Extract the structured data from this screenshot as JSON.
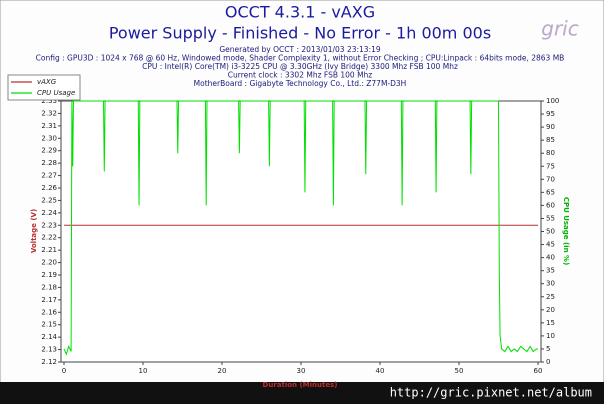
{
  "chart_data": {
    "type": "line",
    "title": "OCCT 4.3.1 - vAXG",
    "subtitle": "Power Supply - Finished - No Error - 1h 00m 00s",
    "info": [
      "Generated by OCCT : 2013/01/03 23:13:19",
      "Config : GPU3D : 1024 x 768 @ 60 Hz, Windowed mode, Shader Complexity 1, without Error Checking ; CPU:Linpack : 64bits mode, 2863 MB",
      "CPU : Intel(R) Core(TM) i3-3225 CPU @ 3.30GHz (Ivy Bridge) 3300 Mhz FSB 100 Mhz",
      "Current clock : 3302 Mhz FSB 100 Mhz",
      "MotherBoard : Gigabyte Technology Co., Ltd.: Z77M-D3H"
    ],
    "watermark": "gric",
    "footer": "http://gric.pixnet.net/album",
    "xlabel": "Duration (Minutes)",
    "ylabel": "Voltage (V)",
    "y2label": "CPU Usage (in %)",
    "xlim": [
      0,
      60
    ],
    "xticks": [
      0,
      10,
      20,
      30,
      40,
      50,
      60
    ],
    "ylim": [
      2.12,
      2.33
    ],
    "yticks": [
      2.12,
      2.13,
      2.14,
      2.15,
      2.16,
      2.17,
      2.18,
      2.19,
      {
        "value": 2.2,
        "label": "2.20"
      },
      2.21,
      2.22,
      2.23,
      2.24,
      2.25,
      2.26,
      2.27,
      2.28,
      2.29,
      {
        "value": 2.3,
        "label": "2.30"
      },
      2.31,
      2.32,
      2.33
    ],
    "y2lim": [
      0,
      100
    ],
    "y2ticks": [
      0,
      5,
      10,
      15,
      20,
      25,
      30,
      35,
      40,
      45,
      50,
      55,
      60,
      65,
      70,
      75,
      80,
      85,
      90,
      95,
      100
    ],
    "legend": "top-left",
    "series": [
      {
        "name": "vAXG",
        "color": "#b83030",
        "x": [
          0,
          60
        ],
        "values": [
          2.23,
          2.23
        ]
      },
      {
        "name": "CPU Usage",
        "color": "#00e000",
        "axis": "y2",
        "x": [
          0,
          0.3,
          0.6,
          0.9,
          1.0,
          1.1,
          1.2,
          5.0,
          5.1,
          5.2,
          9.4,
          9.5,
          9.6,
          14.3,
          14.4,
          14.5,
          17.9,
          18,
          18.1,
          22.1,
          22.2,
          22.3,
          25.9,
          26,
          26.1,
          30.4,
          30.5,
          30.6,
          34,
          34.1,
          34.2,
          38.1,
          38.2,
          38.3,
          42.7,
          42.8,
          42.9,
          47,
          47.1,
          47.2,
          51.4,
          51.5,
          51.6,
          55,
          55.1,
          55.2,
          55.4,
          55.8,
          56.2,
          56.6,
          57,
          57.4,
          57.8,
          58.2,
          58.6,
          59,
          59.4,
          59.8,
          60
        ],
        "values": [
          5,
          3,
          6,
          4,
          100,
          75,
          100,
          100,
          73,
          100,
          100,
          60,
          100,
          100,
          80,
          100,
          100,
          60,
          100,
          100,
          80,
          100,
          100,
          75,
          100,
          100,
          65,
          100,
          100,
          60,
          100,
          100,
          72,
          100,
          100,
          60,
          100,
          100,
          65,
          100,
          100,
          72,
          100,
          100,
          35,
          10,
          5,
          4,
          6,
          4,
          5,
          4,
          6,
          5,
          4,
          6,
          4,
          5,
          5
        ]
      }
    ]
  }
}
